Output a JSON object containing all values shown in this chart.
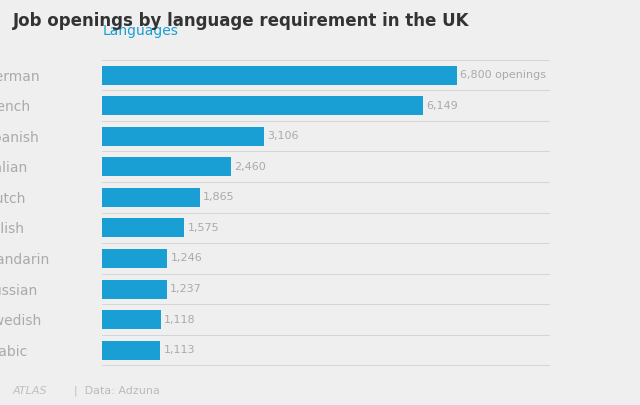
{
  "title": "Job openings by language requirement in the UK",
  "col_label": "Languages",
  "col_label_color": "#1a9fd4",
  "languages": [
    "Arabic",
    "Swedish",
    "Russian",
    "Mandarin",
    "Polish",
    "Dutch",
    "Italian",
    "Spanish",
    "French",
    "German"
  ],
  "values": [
    1113,
    1118,
    1237,
    1246,
    1575,
    1865,
    2460,
    3106,
    6149,
    6800
  ],
  "bar_color": "#1a9fd4",
  "value_labels": [
    "1,113",
    "1,118",
    "1,237",
    "1,246",
    "1,575",
    "1,865",
    "2,460",
    "3,106",
    "6,149",
    "6,800 openings"
  ],
  "background_color": "#efefef",
  "text_color": "#aaaaaa",
  "title_color": "#333333",
  "label_color": "#aaaaaa",
  "footer": "Data: Adzuna",
  "atlas_text": "ATLAS"
}
